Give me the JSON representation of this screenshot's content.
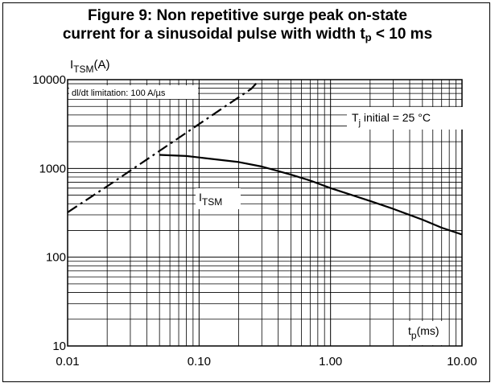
{
  "title": {
    "line1": "Figure 9: Non repetitive surge peak on-state",
    "line2_prefix": "current for a sinusoidal pulse with width t",
    "line2_sub": "p",
    "line2_suffix": " < 10 ms"
  },
  "chart_data": {
    "type": "line",
    "x_scale": "log",
    "y_scale": "log",
    "xlim": [
      0.01,
      10
    ],
    "ylim": [
      10,
      10000
    ],
    "x_ticks": [
      "0.01",
      "0.10",
      "1.00",
      "10.00"
    ],
    "y_ticks": [
      "10",
      "100",
      "1000",
      "10000"
    ],
    "ylabel": {
      "main": "I",
      "sub": "TSM",
      "unit": "(A)"
    },
    "xlabel": {
      "main": "t",
      "sub": "p",
      "unit": "(ms)"
    },
    "grid": true,
    "annotations": {
      "didt": "dl/dt limitation: 100 A/µs",
      "tj_main": "T",
      "tj_sub": "j",
      "tj_rest": " initial = 25 °C",
      "curve_main": "I",
      "curve_sub": "TSM"
    },
    "series": [
      {
        "name": "I_TSM",
        "style": "solid",
        "points": [
          [
            0.05,
            1420
          ],
          [
            0.08,
            1380
          ],
          [
            0.1,
            1330
          ],
          [
            0.2,
            1180
          ],
          [
            0.3,
            1050
          ],
          [
            0.5,
            850
          ],
          [
            0.7,
            730
          ],
          [
            1.0,
            600
          ],
          [
            2.0,
            430
          ],
          [
            3.0,
            350
          ],
          [
            5.0,
            265
          ],
          [
            7.0,
            215
          ],
          [
            10.0,
            180
          ]
        ]
      },
      {
        "name": "dl/dt limitation",
        "style": "dashdot",
        "points": [
          [
            0.01,
            320
          ],
          [
            0.02,
            630
          ],
          [
            0.04,
            1260
          ],
          [
            0.08,
            2520
          ],
          [
            0.15,
            4750
          ],
          [
            0.25,
            7900
          ],
          [
            0.28,
            9500
          ]
        ]
      }
    ]
  }
}
